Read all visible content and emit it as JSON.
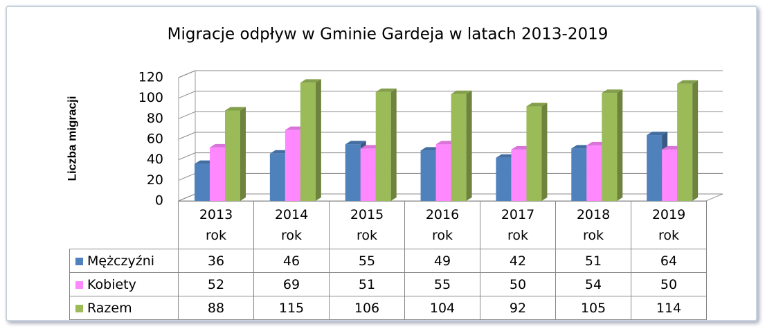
{
  "chart_data": {
    "type": "bar3d",
    "title": "Migracje odpływ w Gminie Gardeja w latach 2013-2019",
    "y_label": "Liczba migracji",
    "categories": [
      "2013 rok",
      "2014 rok",
      "2015 rok",
      "2016 rok",
      "2017 rok",
      "2018 rok",
      "2019 rok"
    ],
    "series": [
      {
        "name": "Mężczyźni",
        "color": "#4f81bd",
        "values": [
          36,
          46,
          55,
          49,
          42,
          51,
          64
        ]
      },
      {
        "name": "Kobiety",
        "color": "#ff88ff",
        "values": [
          52,
          69,
          51,
          55,
          50,
          54,
          50
        ]
      },
      {
        "name": "Razem",
        "color": "#9bbb59",
        "values": [
          88,
          115,
          106,
          104,
          92,
          105,
          114
        ]
      }
    ],
    "ylim": [
      0,
      120
    ],
    "yticks": [
      0,
      20,
      40,
      60,
      80,
      100,
      120
    ],
    "grid": true
  }
}
